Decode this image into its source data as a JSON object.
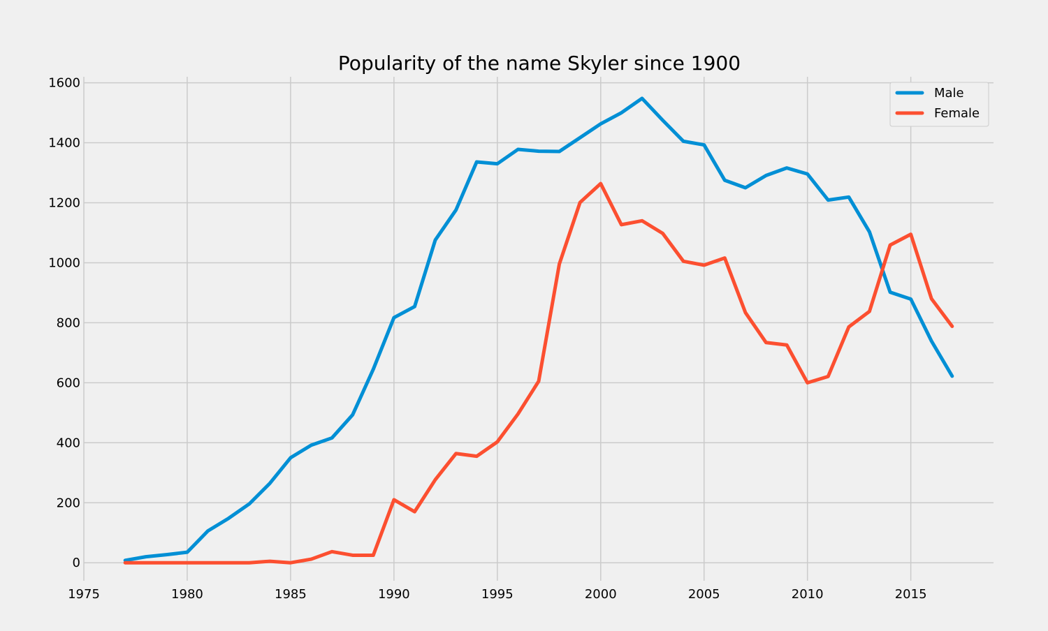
{
  "chart_data": {
    "type": "line",
    "title": "Popularity of the name Skyler since 1900",
    "xlabel": "",
    "ylabel": "",
    "xlim": [
      1975,
      2019
    ],
    "ylim": [
      -60,
      1620
    ],
    "xticks": [
      "1975",
      "1980",
      "1985",
      "1990",
      "1995",
      "2000",
      "2005",
      "2010",
      "2015"
    ],
    "yticks": [
      "0",
      "200",
      "400",
      "600",
      "800",
      "1000",
      "1200",
      "1400",
      "1600"
    ],
    "grid": true,
    "legend_position": "top-right",
    "x": [
      1977,
      1978,
      1979,
      1980,
      1981,
      1982,
      1983,
      1984,
      1985,
      1986,
      1987,
      1988,
      1989,
      1990,
      1991,
      1992,
      1993,
      1994,
      1995,
      1996,
      1997,
      1998,
      1999,
      2000,
      2001,
      2002,
      2003,
      2004,
      2005,
      2006,
      2007,
      2008,
      2009,
      2010,
      2011,
      2012,
      2013,
      2014,
      2015,
      2016,
      2017
    ],
    "series": [
      {
        "name": "Male",
        "color": "#008fd5",
        "values": [
          8,
          20,
          27,
          35,
          106,
          148,
          196,
          265,
          350,
          392,
          416,
          493,
          645,
          817,
          854,
          1076,
          1176,
          1336,
          1330,
          1378,
          1372,
          1371,
          1417,
          1463,
          1500,
          1548,
          1475,
          1405,
          1393,
          1275,
          1250,
          1291,
          1316,
          1296,
          1209,
          1219,
          1103,
          902,
          879,
          739,
          622
        ]
      },
      {
        "name": "Female",
        "color": "#fc4f30",
        "values": [
          0,
          0,
          0,
          0,
          0,
          0,
          0,
          5,
          0,
          12,
          37,
          25,
          25,
          210,
          170,
          277,
          364,
          355,
          403,
          496,
          605,
          996,
          1201,
          1264,
          1127,
          1140,
          1098,
          1005,
          992,
          1016,
          834,
          734,
          726,
          600,
          621,
          786,
          838,
          1059,
          1095,
          880,
          788
        ]
      }
    ]
  }
}
